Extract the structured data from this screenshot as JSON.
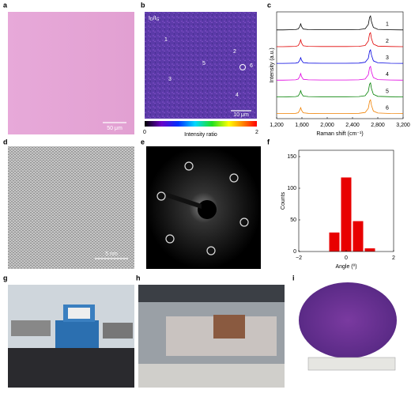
{
  "panels": {
    "a": {
      "label": "a",
      "scale_bar": "50 μm"
    },
    "b": {
      "label": "b",
      "map_title": [
        "I",
        "D",
        "/I",
        "G"
      ],
      "points": [
        "1",
        "2",
        "3",
        "4",
        "5",
        "6"
      ],
      "scale_bar": "10 μm",
      "colorbar": {
        "label": "Intensity ratio",
        "ticks": [
          0,
          2
        ]
      }
    },
    "c": {
      "label": "c"
    },
    "d": {
      "label": "d",
      "scale_bar": "5 nm"
    },
    "e": {
      "label": "e"
    },
    "f": {
      "label": "f"
    },
    "g": {
      "label": "g"
    },
    "h": {
      "label": "h"
    },
    "i": {
      "label": "i"
    }
  },
  "chart_data": [
    {
      "type": "line",
      "xlabel": "Raman shift (cm⁻¹)",
      "ylabel": "Intensity (a.u.)",
      "xlim": [
        1200,
        3200
      ],
      "xticks": [
        {
          "value": 1200,
          "label": "1,200"
        },
        {
          "value": 1600,
          "label": "1,600"
        },
        {
          "value": 2000,
          "label": "2,000"
        },
        {
          "value": 2400,
          "label": "2,400"
        },
        {
          "value": 2800,
          "label": "2,800"
        },
        {
          "value": 3200,
          "label": "3,200"
        }
      ],
      "x": [
        1200,
        1300,
        1400,
        1500,
        1540,
        1565,
        1580,
        1595,
        1620,
        1700,
        1900,
        2100,
        2300,
        2500,
        2600,
        2650,
        2670,
        2685,
        2700,
        2730,
        2800,
        3000,
        3200
      ],
      "series": [
        {
          "name": "1",
          "color": "#000000",
          "values": [
            0.02,
            0.02,
            0.03,
            0.04,
            0.08,
            0.25,
            0.45,
            0.25,
            0.08,
            0.04,
            0.03,
            0.03,
            0.03,
            0.04,
            0.1,
            0.4,
            0.9,
            1.0,
            0.6,
            0.2,
            0.06,
            0.03,
            0.02
          ]
        },
        {
          "name": "2",
          "color": "#e00000",
          "values": [
            0.02,
            0.02,
            0.03,
            0.04,
            0.09,
            0.28,
            0.5,
            0.27,
            0.08,
            0.04,
            0.03,
            0.03,
            0.03,
            0.04,
            0.1,
            0.42,
            0.92,
            1.0,
            0.58,
            0.2,
            0.06,
            0.03,
            0.02
          ]
        },
        {
          "name": "3",
          "color": "#0000e0",
          "values": [
            0.02,
            0.02,
            0.03,
            0.04,
            0.08,
            0.24,
            0.42,
            0.24,
            0.08,
            0.04,
            0.03,
            0.03,
            0.03,
            0.04,
            0.1,
            0.38,
            0.88,
            0.97,
            0.6,
            0.2,
            0.06,
            0.03,
            0.02
          ]
        },
        {
          "name": "4",
          "color": "#e000e0",
          "values": [
            0.02,
            0.02,
            0.03,
            0.04,
            0.09,
            0.27,
            0.48,
            0.26,
            0.08,
            0.04,
            0.03,
            0.03,
            0.03,
            0.04,
            0.1,
            0.4,
            0.9,
            0.98,
            0.6,
            0.2,
            0.06,
            0.03,
            0.02
          ]
        },
        {
          "name": "5",
          "color": "#008000",
          "values": [
            0.02,
            0.02,
            0.03,
            0.04,
            0.08,
            0.26,
            0.46,
            0.25,
            0.08,
            0.04,
            0.03,
            0.03,
            0.03,
            0.04,
            0.1,
            0.41,
            0.91,
            1.0,
            0.6,
            0.2,
            0.06,
            0.03,
            0.02
          ]
        },
        {
          "name": "6",
          "color": "#f08000",
          "values": [
            0.02,
            0.02,
            0.03,
            0.04,
            0.08,
            0.25,
            0.44,
            0.25,
            0.08,
            0.04,
            0.03,
            0.03,
            0.03,
            0.04,
            0.1,
            0.39,
            0.89,
            0.99,
            0.6,
            0.2,
            0.06,
            0.03,
            0.02
          ]
        }
      ]
    },
    {
      "type": "histogram",
      "xlabel": "Angle (º)",
      "ylabel": "Counts",
      "color": "#e80000",
      "bins": [
        -0.75,
        -0.25,
        0.25,
        0.75,
        1.25
      ],
      "values": [
        30,
        117,
        48,
        5
      ],
      "xlim": [
        -2,
        2
      ],
      "xticks": [
        {
          "value": -2,
          "label": "−2"
        },
        0,
        2
      ],
      "ylim": [
        0,
        160
      ],
      "yticks": [
        0,
        50,
        100,
        150
      ]
    }
  ]
}
